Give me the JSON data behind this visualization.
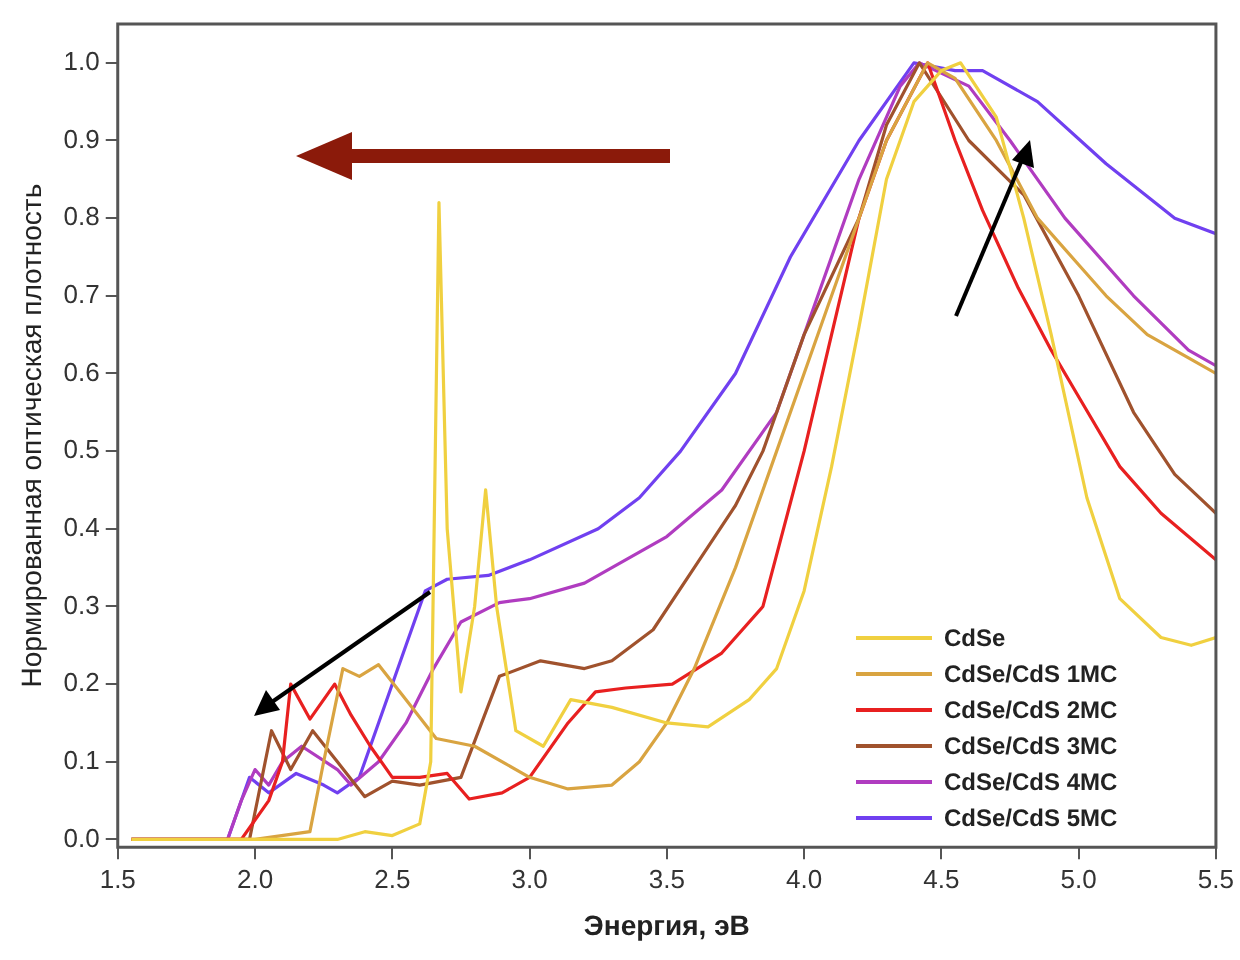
{
  "chart_data": {
    "type": "line",
    "xlabel": "Энергия, эВ",
    "ylabel": "Нормированная оптическая плотность",
    "xlim": [
      1.5,
      5.5
    ],
    "ylim": [
      -0.01,
      1.05
    ],
    "xticks": [
      1.5,
      {
        "value": 2,
        "label": "2.0"
      },
      2.5,
      {
        "value": 3,
        "label": "3.0"
      },
      3.5,
      {
        "value": 4,
        "label": "4.0"
      },
      4.5,
      {
        "value": 5,
        "label": "5.0"
      },
      5.5
    ],
    "yticks": [
      {
        "value": 0,
        "label": "0.0"
      },
      0.1,
      0.2,
      0.3,
      0.4,
      0.5,
      0.6,
      0.7,
      0.8,
      0.9,
      {
        "value": 1,
        "label": "1.0"
      }
    ],
    "grid": false,
    "legend": "bottom right",
    "marker": "none",
    "line_style": "solid",
    "series": [
      {
        "name": "CdSe",
        "color": "#f0d040",
        "x": [
          1.55,
          2.0,
          2.3,
          2.4,
          2.5,
          2.6,
          2.64,
          2.67,
          2.7,
          2.75,
          2.8,
          2.84,
          2.88,
          2.95,
          3.05,
          3.15,
          3.3,
          3.5,
          3.65,
          3.8,
          3.9,
          4.0,
          4.1,
          4.2,
          4.3,
          4.4,
          4.5,
          4.57,
          4.7,
          4.8,
          4.9,
          5.03,
          5.15,
          5.3,
          5.41,
          5.5
        ],
        "values": [
          0,
          0,
          0,
          0.01,
          0.005,
          0.02,
          0.1,
          0.82,
          0.4,
          0.19,
          0.3,
          0.45,
          0.3,
          0.14,
          0.12,
          0.18,
          0.17,
          0.15,
          0.145,
          0.18,
          0.22,
          0.32,
          0.48,
          0.66,
          0.85,
          0.95,
          0.99,
          1.0,
          0.93,
          0.8,
          0.65,
          0.44,
          0.31,
          0.26,
          0.25,
          0.26
        ]
      },
      {
        "name": "CdSe/CdS 1MC",
        "color": "#d9a441",
        "x": [
          1.55,
          2.0,
          2.2,
          2.25,
          2.32,
          2.38,
          2.45,
          2.55,
          2.66,
          2.8,
          3.0,
          3.14,
          3.3,
          3.4,
          3.5,
          3.6,
          3.75,
          3.9,
          4.0,
          4.1,
          4.2,
          4.3,
          4.45,
          4.55,
          4.7,
          4.85,
          5.0,
          5.1,
          5.25,
          5.4,
          5.5
        ],
        "values": [
          0,
          0,
          0.01,
          0.1,
          0.22,
          0.21,
          0.225,
          0.18,
          0.13,
          0.12,
          0.08,
          0.065,
          0.07,
          0.1,
          0.15,
          0.22,
          0.35,
          0.5,
          0.6,
          0.7,
          0.8,
          0.9,
          1.0,
          0.98,
          0.9,
          0.8,
          0.74,
          0.7,
          0.65,
          0.62,
          0.6
        ]
      },
      {
        "name": "CdSe/CdS 2MC",
        "color": "#e82020",
        "x": [
          1.55,
          1.95,
          2.05,
          2.1,
          2.13,
          2.2,
          2.29,
          2.35,
          2.42,
          2.5,
          2.6,
          2.7,
          2.78,
          2.9,
          3.0,
          3.14,
          3.24,
          3.35,
          3.52,
          3.7,
          3.85,
          4.0,
          4.1,
          4.2,
          4.3,
          4.45,
          4.55,
          4.65,
          4.78,
          4.9,
          5.0,
          5.15,
          5.3,
          5.5
        ],
        "values": [
          0,
          0,
          0.05,
          0.1,
          0.2,
          0.155,
          0.2,
          0.16,
          0.12,
          0.08,
          0.08,
          0.085,
          0.052,
          0.06,
          0.08,
          0.15,
          0.19,
          0.195,
          0.2,
          0.24,
          0.3,
          0.5,
          0.65,
          0.8,
          0.9,
          1.0,
          0.9,
          0.81,
          0.71,
          0.63,
          0.57,
          0.48,
          0.42,
          0.36
        ]
      },
      {
        "name": "CdSe/CdS 3MC",
        "color": "#a0522d",
        "x": [
          1.55,
          1.98,
          2.02,
          2.06,
          2.13,
          2.21,
          2.3,
          2.4,
          2.5,
          2.6,
          2.75,
          2.89,
          3.04,
          3.2,
          3.3,
          3.45,
          3.6,
          3.75,
          3.85,
          4.0,
          4.2,
          4.3,
          4.42,
          4.6,
          4.8,
          5.0,
          5.2,
          5.35,
          5.5
        ],
        "values": [
          0,
          0,
          0.07,
          0.14,
          0.09,
          0.14,
          0.1,
          0.055,
          0.075,
          0.07,
          0.08,
          0.21,
          0.23,
          0.22,
          0.23,
          0.27,
          0.35,
          0.43,
          0.5,
          0.65,
          0.8,
          0.92,
          1.0,
          0.9,
          0.83,
          0.7,
          0.55,
          0.47,
          0.42
        ]
      },
      {
        "name": "CdSe/CdS 4MC",
        "color": "#b03cc0",
        "x": [
          1.55,
          1.9,
          1.95,
          2.0,
          2.05,
          2.1,
          2.17,
          2.3,
          2.35,
          2.45,
          2.55,
          2.65,
          2.75,
          2.89,
          3.0,
          3.2,
          3.4,
          3.5,
          3.7,
          3.9,
          4.05,
          4.2,
          4.35,
          4.42,
          4.6,
          4.75,
          4.95,
          5.2,
          5.4,
          5.5
        ],
        "values": [
          0,
          0,
          0.05,
          0.09,
          0.07,
          0.1,
          0.12,
          0.09,
          0.07,
          0.1,
          0.15,
          0.22,
          0.28,
          0.305,
          0.31,
          0.33,
          0.37,
          0.39,
          0.45,
          0.55,
          0.7,
          0.85,
          0.97,
          1.0,
          0.97,
          0.9,
          0.8,
          0.7,
          0.63,
          0.61
        ]
      },
      {
        "name": "CdSe/CdS 5MC",
        "color": "#7040f0",
        "x": [
          1.55,
          1.9,
          1.98,
          2.05,
          2.15,
          2.25,
          2.3,
          2.38,
          2.45,
          2.55,
          2.62,
          2.7,
          2.85,
          3.0,
          3.25,
          3.4,
          3.55,
          3.75,
          3.95,
          4.2,
          4.4,
          4.55,
          4.65,
          4.85,
          5.1,
          5.35,
          5.5
        ],
        "values": [
          0,
          0,
          0.08,
          0.06,
          0.085,
          0.07,
          0.06,
          0.08,
          0.15,
          0.25,
          0.32,
          0.335,
          0.34,
          0.36,
          0.4,
          0.44,
          0.5,
          0.6,
          0.75,
          0.9,
          1.0,
          0.99,
          0.99,
          0.95,
          0.87,
          0.8,
          0.78
        ]
      }
    ]
  }
}
